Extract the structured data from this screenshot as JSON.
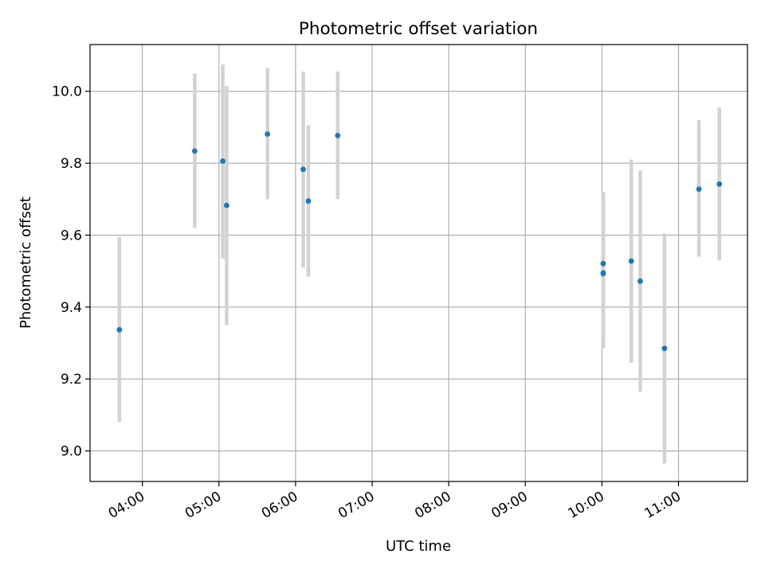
{
  "chart_data": {
    "type": "scatter",
    "title": "Photometric offset variation",
    "xlabel": "UTC time",
    "ylabel": "Photometric offset",
    "x_is_time": true,
    "xlim": [
      "03:19",
      "11:54"
    ],
    "ylim": [
      8.915,
      10.13
    ],
    "grid": true,
    "x_ticks": [
      "04:00",
      "05:00",
      "06:00",
      "07:00",
      "08:00",
      "09:00",
      "10:00",
      "11:00"
    ],
    "y_ticks": [
      "9.0",
      "9.2",
      "9.4",
      "9.6",
      "9.8",
      "10.0"
    ],
    "marker_color": "#1f77b4",
    "errorbar_color": "#d3d3d3",
    "grid_color": "#b0b0b0",
    "points": [
      {
        "time": "03:42",
        "y": 9.337,
        "ylo": 9.08,
        "yhi": 9.595
      },
      {
        "time": "04:41",
        "y": 9.834,
        "ylo": 9.62,
        "yhi": 10.05
      },
      {
        "time": "05:03",
        "y": 9.806,
        "ylo": 9.535,
        "yhi": 10.075
      },
      {
        "time": "05:06",
        "y": 9.683,
        "ylo": 9.35,
        "yhi": 10.015
      },
      {
        "time": "05:38",
        "y": 9.881,
        "ylo": 9.7,
        "yhi": 10.065
      },
      {
        "time": "06:06",
        "y": 9.783,
        "ylo": 9.51,
        "yhi": 10.055
      },
      {
        "time": "06:10",
        "y": 9.695,
        "ylo": 9.485,
        "yhi": 9.905
      },
      {
        "time": "06:33",
        "y": 9.877,
        "ylo": 9.7,
        "yhi": 10.055
      },
      {
        "time": "10:01",
        "y": 9.521,
        "ylo": 9.325,
        "yhi": 9.72
      },
      {
        "time": "10:01",
        "y": 9.495,
        "ylo": 9.285,
        "yhi": 9.705
      },
      {
        "time": "10:01",
        "y": 9.493,
        "ylo": 9.29,
        "yhi": 9.7
      },
      {
        "time": "10:23",
        "y": 9.528,
        "ylo": 9.245,
        "yhi": 9.81
      },
      {
        "time": "10:30",
        "y": 9.472,
        "ylo": 9.165,
        "yhi": 9.78
      },
      {
        "time": "10:49",
        "y": 9.285,
        "ylo": 8.965,
        "yhi": 9.605
      },
      {
        "time": "11:16",
        "y": 9.728,
        "ylo": 9.54,
        "yhi": 9.92
      },
      {
        "time": "11:32",
        "y": 9.742,
        "ylo": 9.53,
        "yhi": 9.955
      }
    ]
  }
}
